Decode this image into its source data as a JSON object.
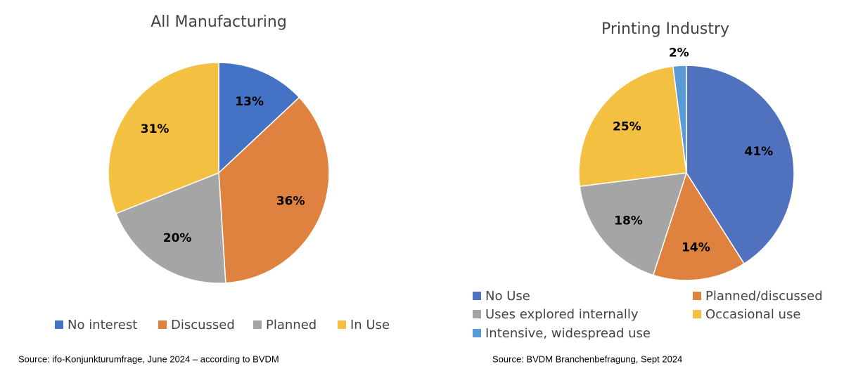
{
  "chart_data": [
    {
      "type": "pie",
      "title": "All Manufacturing",
      "categories": [
        "No interest",
        "Discussed",
        "Planned",
        "In Use"
      ],
      "values": [
        13,
        36,
        20,
        31
      ],
      "value_labels": [
        "13%",
        "36%",
        "20%",
        "31%"
      ],
      "colors": [
        "#4472c4",
        "#e0823f",
        "#a5a5a5",
        "#f4c042"
      ],
      "source": "Source: ifo-Konjunkturumfrage, June 2024 – according to BVDM"
    },
    {
      "type": "pie",
      "title": "Printing Industry",
      "categories": [
        "No Use",
        "Planned/discussed",
        "Uses explored internally",
        "Occasional use",
        "Intensive, widespread use"
      ],
      "values": [
        41,
        14,
        18,
        25,
        2
      ],
      "value_labels": [
        "41%",
        "14%",
        "18%",
        "25%",
        "2%"
      ],
      "colors": [
        "#4f71be",
        "#e0823f",
        "#a5a5a5",
        "#f4c042",
        "#5b9bd5"
      ],
      "source": "Source: BVDM Branchenbefragung, Sept 2024"
    }
  ]
}
